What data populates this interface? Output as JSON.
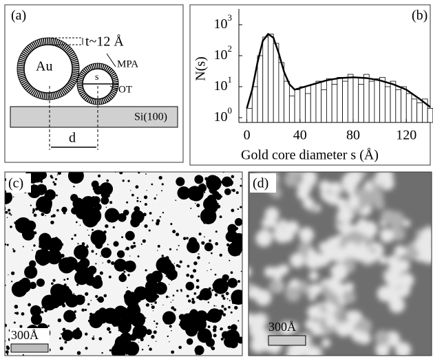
{
  "panel_a": {
    "label": "(a)",
    "core": "Au",
    "thickness": "t~12 Å",
    "ligand_1": "MPA",
    "size": "s",
    "ligand_2": "OT",
    "substrate": "Si(100)",
    "distance": "d"
  },
  "chart_data": {
    "type": "histogram",
    "label": "(b)",
    "x_label": "Gold core diameter  s  (Å)",
    "y_label": "N(s)",
    "bins": [
      0,
      4,
      8,
      12,
      16,
      20,
      24,
      28,
      32,
      36,
      40,
      44,
      48,
      52,
      56,
      60,
      64,
      68,
      72,
      76,
      80,
      84,
      88,
      92,
      96,
      100,
      104,
      108,
      112,
      116,
      120,
      124,
      128,
      132,
      136,
      140
    ],
    "values": [
      2,
      10,
      100,
      400,
      500,
      250,
      60,
      15,
      5,
      8,
      10,
      6,
      12,
      15,
      8,
      18,
      12,
      20,
      15,
      25,
      20,
      12,
      25,
      15,
      18,
      20,
      10,
      15,
      8,
      10,
      6,
      4,
      3,
      4,
      2
    ],
    "fit": {
      "x": [
        0,
        4,
        8,
        12,
        16,
        20,
        24,
        28,
        32,
        36,
        40,
        50,
        60,
        70,
        80,
        90,
        100,
        110,
        120,
        130,
        138
      ],
      "values": [
        2,
        8,
        60,
        300,
        500,
        380,
        120,
        30,
        12,
        8,
        9,
        12,
        16,
        19,
        20,
        19,
        16,
        12,
        8,
        4,
        2.2
      ],
      "color": "#000000"
    },
    "color": "#ffffff",
    "y_log": true,
    "xlim": [
      -6,
      138
    ],
    "xticks": [
      0,
      40,
      80,
      120
    ],
    "ylim": [
      0.7,
      1500
    ],
    "yticks": [
      {
        "value": 1,
        "label": "10",
        "exponent": "0"
      },
      {
        "value": 10,
        "label": "10",
        "exponent": "1"
      },
      {
        "value": 100,
        "label": "10",
        "exponent": "2"
      },
      {
        "value": 1000,
        "label": "10",
        "exponent": "3"
      }
    ]
  },
  "panel_c": {
    "label": "(c)",
    "scale_bar": "300Å"
  },
  "panel_d": {
    "label": "(d)",
    "scale_bar": "300Å"
  }
}
